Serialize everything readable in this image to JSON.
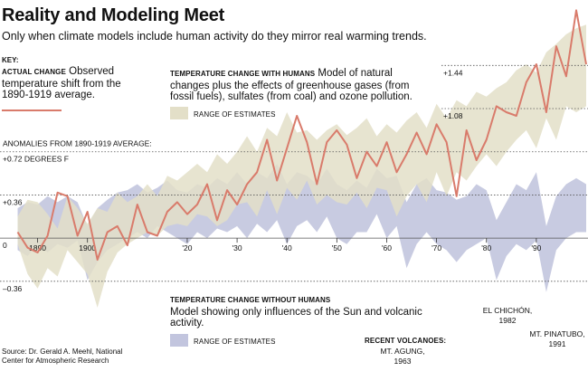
{
  "title": "Reality and Modeling Meet",
  "subtitle": "Only when climate models include human activity do they mirror real warming trends.",
  "key": {
    "heading": "KEY:",
    "actual_label": "ACTUAL CHANGE",
    "actual_text": "Observed temperature shift from the 1890-1919 average.",
    "with_label": "TEMPERATURE CHANGE WITH HUMANS",
    "with_text": "Model of natural changes plus the effects of greenhouse gases (from fossil fuels), sulfates (from coal) and ozone pollution.",
    "with_range": "RANGE OF ESTIMATES",
    "without_label": "TEMPERATURE CHANGE WITHOUT HUMANS",
    "without_text": "Model showing only influences of the Sun and volcanic activity.",
    "without_range": "RANGE OF ESTIMATES"
  },
  "source": "Source: Dr. Gerald A. Meehl, National Center for Atmospheric Research",
  "volcanoes": {
    "heading": "RECENT VOLCANOES:",
    "agung": "MT. AGUNG, 1963",
    "elchichon": "EL CHICHÓN, 1982",
    "pinatubo": "MT. PINATUBO, 1991"
  },
  "colors": {
    "actual": "#d97b6b",
    "with_humans": "#e3dfc8",
    "without_humans": "#c2c5de",
    "text": "#111111"
  },
  "chart_data": {
    "type": "line",
    "title": "Reality and Modeling Meet",
    "ylabel": "ANOMALIES FROM 1890-1919 AVERAGE:",
    "y_unit": "DEGREES F",
    "ylim": [
      -0.55,
      1.85
    ],
    "xlim": [
      1885,
      2000
    ],
    "grid": "dotted horizontal lines at labeled values",
    "y_reference_lines": [
      {
        "value": 1.44,
        "label": "+1.44"
      },
      {
        "value": 1.08,
        "label": "+1.08"
      },
      {
        "value": 0.72,
        "label": "+0.72 DEGREES F"
      },
      {
        "value": 0.36,
        "label": "+0.36"
      },
      {
        "value": 0,
        "label": "0"
      },
      {
        "value": -0.36,
        "label": "–0.36"
      }
    ],
    "x_ticks": [
      {
        "x": 1890,
        "label": "1890"
      },
      {
        "x": 1900,
        "label": "1900"
      },
      {
        "x": 1920,
        "label": "'20"
      },
      {
        "x": 1930,
        "label": "'30"
      },
      {
        "x": 1940,
        "label": "'40"
      },
      {
        "x": 1950,
        "label": "'50"
      },
      {
        "x": 1960,
        "label": "'60"
      },
      {
        "x": 1970,
        "label": "'70"
      },
      {
        "x": 1980,
        "label": "'80"
      },
      {
        "x": 1990,
        "label": "'90"
      }
    ],
    "x": [
      1886,
      1888,
      1890,
      1892,
      1894,
      1896,
      1898,
      1900,
      1902,
      1904,
      1906,
      1908,
      1910,
      1912,
      1914,
      1916,
      1918,
      1920,
      1922,
      1924,
      1926,
      1928,
      1930,
      1932,
      1934,
      1936,
      1938,
      1940,
      1942,
      1944,
      1946,
      1948,
      1950,
      1952,
      1954,
      1956,
      1958,
      1960,
      1962,
      1964,
      1966,
      1968,
      1970,
      1972,
      1974,
      1976,
      1978,
      1980,
      1982,
      1984,
      1986,
      1988,
      1990,
      1992,
      1994,
      1996,
      1998,
      2000
    ],
    "series": [
      {
        "name": "ACTUAL CHANGE",
        "values": [
          0.05,
          -0.08,
          -0.12,
          0.02,
          0.38,
          0.35,
          0.02,
          0.22,
          -0.18,
          0.05,
          0.1,
          -0.06,
          0.28,
          0.05,
          0.02,
          0.22,
          0.3,
          0.2,
          0.28,
          0.45,
          0.15,
          0.4,
          0.28,
          0.45,
          0.55,
          0.82,
          0.48,
          0.75,
          1.02,
          0.8,
          0.45,
          0.8,
          0.9,
          0.78,
          0.5,
          0.72,
          0.6,
          0.8,
          0.55,
          0.7,
          0.88,
          0.7,
          0.95,
          0.8,
          0.35,
          0.9,
          0.65,
          0.82,
          1.1,
          1.05,
          1.02,
          1.3,
          1.45,
          1.05,
          1.6,
          1.35,
          1.9,
          1.45
        ]
      },
      {
        "name": "TEMPERATURE CHANGE WITH HUMANS: RANGE OF ESTIMATES",
        "low": [
          -0.05,
          -0.3,
          -0.42,
          -0.25,
          -0.32,
          -0.1,
          -0.2,
          -0.3,
          -0.58,
          -0.28,
          -0.12,
          -0.05,
          0.0,
          0.05,
          0.02,
          0.1,
          0.12,
          0.1,
          0.2,
          0.18,
          0.1,
          0.15,
          0.28,
          0.3,
          0.18,
          0.4,
          0.2,
          0.42,
          0.32,
          0.48,
          0.28,
          0.36,
          0.3,
          0.28,
          0.38,
          0.25,
          0.42,
          0.4,
          0.18,
          0.35,
          0.45,
          0.3,
          0.55,
          0.35,
          0.55,
          0.48,
          0.6,
          0.7,
          0.6,
          0.72,
          0.82,
          0.9,
          0.75,
          1.0,
          0.82,
          1.1,
          1.05,
          1.1
        ],
        "high": [
          0.18,
          0.32,
          0.3,
          0.2,
          0.08,
          0.35,
          0.25,
          0.12,
          0.25,
          0.22,
          0.38,
          0.3,
          0.35,
          0.45,
          0.35,
          0.52,
          0.48,
          0.55,
          0.62,
          0.55,
          0.7,
          0.62,
          0.72,
          0.85,
          0.72,
          0.92,
          0.85,
          1.05,
          0.88,
          0.9,
          0.82,
          0.9,
          0.95,
          0.86,
          0.92,
          1.0,
          0.85,
          0.95,
          0.88,
          0.98,
          1.05,
          0.92,
          1.12,
          1.0,
          1.15,
          1.1,
          1.22,
          1.18,
          1.25,
          1.3,
          1.4,
          1.45,
          1.38,
          1.55,
          1.62,
          1.7,
          1.75,
          1.78
        ]
      },
      {
        "name": "TEMPERATURE CHANGE WITHOUT HUMANS: RANGE OF ESTIMATES",
        "low": [
          -0.1,
          -0.15,
          -0.05,
          -0.12,
          -0.05,
          -0.08,
          -0.02,
          -0.35,
          -0.2,
          -0.1,
          -0.05,
          0.0,
          0.05,
          0.0,
          0.1,
          0.05,
          0.0,
          -0.05,
          0.05,
          0.0,
          0.08,
          0.05,
          0.1,
          0.0,
          0.12,
          0.05,
          0.15,
          -0.05,
          0.1,
          0.15,
          0.05,
          0.18,
          0.0,
          -0.05,
          0.05,
          0.05,
          0.2,
          0.0,
          0.1,
          -0.25,
          -0.05,
          0.05,
          -0.05,
          -0.1,
          -0.2,
          -0.1,
          -0.05,
          0.0,
          -0.35,
          -0.15,
          -0.05,
          -0.1,
          -0.02,
          -0.45,
          -0.1,
          0.0,
          0.05,
          0.05
        ],
        "high": [
          0.25,
          0.3,
          0.28,
          0.35,
          0.3,
          0.35,
          0.3,
          0.1,
          0.25,
          0.32,
          0.38,
          0.4,
          0.45,
          0.38,
          0.42,
          0.48,
          0.4,
          0.38,
          0.45,
          0.42,
          0.5,
          0.45,
          0.55,
          0.45,
          0.55,
          0.5,
          0.62,
          0.45,
          0.55,
          0.52,
          0.45,
          0.58,
          0.45,
          0.4,
          0.48,
          0.42,
          0.58,
          0.5,
          0.52,
          0.3,
          0.45,
          0.5,
          0.4,
          0.38,
          0.32,
          0.35,
          0.45,
          0.4,
          0.15,
          0.3,
          0.45,
          0.4,
          0.55,
          0.1,
          0.35,
          0.45,
          0.5,
          0.45
        ]
      }
    ]
  }
}
